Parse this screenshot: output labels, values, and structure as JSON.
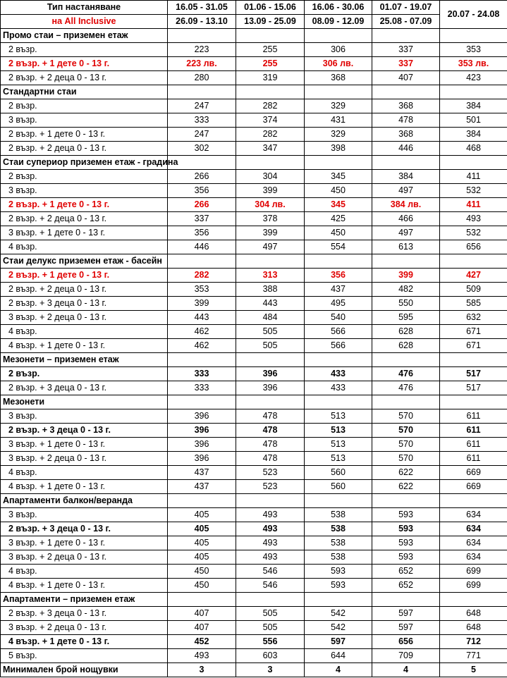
{
  "header": {
    "title": "Тип настаняване",
    "subtitle": "на All Inclusive",
    "periods": [
      [
        "16.05 - 31.05",
        "26.09 - 13.10"
      ],
      [
        "01.06 - 15.06",
        "13.09 - 25.09"
      ],
      [
        "16.06 - 30.06",
        "08.09 - 12.09"
      ],
      [
        "01.07 - 19.07",
        "25.08 - 07.09"
      ],
      [
        "20.07 - 24.08"
      ]
    ]
  },
  "table": {
    "rows": [
      {
        "label": "Промо стаи – приземен етаж",
        "style": "section"
      },
      {
        "label": "2 възр.",
        "values": [
          223,
          255,
          306,
          337,
          353
        ]
      },
      {
        "label": "2 възр. + 1 дете 0 - 13 г.",
        "style": "red",
        "values": [
          "223 лв.",
          255,
          "306 лв.",
          337,
          "353 лв."
        ]
      },
      {
        "label": "2 възр. + 2 деца 0 - 13 г.",
        "values": [
          280,
          319,
          368,
          407,
          423
        ]
      },
      {
        "label": "Стандартни стаи",
        "style": "section"
      },
      {
        "label": "2 възр.",
        "values": [
          247,
          282,
          329,
          368,
          384
        ]
      },
      {
        "label": "3 възр.",
        "values": [
          333,
          374,
          431,
          478,
          501
        ]
      },
      {
        "label": "2 възр. + 1 дете 0 - 13 г.",
        "values": [
          247,
          282,
          329,
          368,
          384
        ]
      },
      {
        "label": "2 възр. + 2 деца 0 - 13 г.",
        "values": [
          302,
          347,
          398,
          446,
          468
        ]
      },
      {
        "label": "Стаи супериор приземен етаж  -  градина",
        "style": "section"
      },
      {
        "label": "2 възр.",
        "values": [
          266,
          304,
          345,
          384,
          411
        ]
      },
      {
        "label": "3 възр.",
        "values": [
          356,
          399,
          450,
          497,
          532
        ]
      },
      {
        "label": "2 възр. + 1 дете 0 - 13 г.",
        "style": "red",
        "values": [
          266,
          "304 лв.",
          345,
          "384 лв.",
          411
        ]
      },
      {
        "label": "2 възр. + 2 деца 0 - 13 г.",
        "values": [
          337,
          378,
          425,
          466,
          493
        ]
      },
      {
        "label": "3 възр. + 1 дете 0 - 13 г.",
        "values": [
          356,
          399,
          450,
          497,
          532
        ]
      },
      {
        "label": "4 възр.",
        "values": [
          446,
          497,
          554,
          613,
          656
        ]
      },
      {
        "label": "Стаи делукс приземен етаж  -  басейн",
        "style": "section"
      },
      {
        "label": "2 възр. + 1 дете 0 - 13 г.",
        "style": "red",
        "values": [
          282,
          313,
          356,
          399,
          427
        ]
      },
      {
        "label": "2 възр. + 2 деца 0 - 13 г.",
        "values": [
          353,
          388,
          437,
          482,
          509
        ]
      },
      {
        "label": "2 възр. + 3 деца 0 - 13 г.",
        "values": [
          399,
          443,
          495,
          550,
          585
        ]
      },
      {
        "label": "3 възр. + 2 деца 0 - 13 г.",
        "values": [
          443,
          484,
          540,
          595,
          632
        ]
      },
      {
        "label": "4 възр.",
        "values": [
          462,
          505,
          566,
          628,
          671
        ]
      },
      {
        "label": "4 възр. + 1 дете 0 - 13 г.",
        "values": [
          462,
          505,
          566,
          628,
          671
        ]
      },
      {
        "label": "Мезонети – приземен етаж",
        "style": "section"
      },
      {
        "label": "2 възр.",
        "style": "bold",
        "values": [
          333,
          396,
          433,
          476,
          517
        ]
      },
      {
        "label": "2 възр. + 3 деца 0 - 13 г.",
        "values": [
          333,
          396,
          433,
          476,
          517
        ]
      },
      {
        "label": "Мезонети",
        "style": "section"
      },
      {
        "label": "3 възр.",
        "values": [
          396,
          478,
          513,
          570,
          611
        ]
      },
      {
        "label": "2 възр. + 3 деца 0 - 13 г.",
        "style": "bold",
        "values": [
          396,
          478,
          513,
          570,
          611
        ]
      },
      {
        "label": "3 възр. + 1 дете 0 - 13 г.",
        "values": [
          396,
          478,
          513,
          570,
          611
        ]
      },
      {
        "label": "3 възр. + 2 деца 0 - 13 г.",
        "values": [
          396,
          478,
          513,
          570,
          611
        ]
      },
      {
        "label": "4 възр.",
        "values": [
          437,
          523,
          560,
          622,
          669
        ]
      },
      {
        "label": "4 възр. + 1  дете 0 - 13 г.",
        "values": [
          437,
          523,
          560,
          622,
          669
        ]
      },
      {
        "label": "Апартаменти балкон/веранда",
        "style": "section"
      },
      {
        "label": "3 възр.",
        "values": [
          405,
          493,
          538,
          593,
          634
        ]
      },
      {
        "label": "2 възр. + 3 деца 0 - 13 г.",
        "style": "bold",
        "values": [
          405,
          493,
          538,
          593,
          634
        ]
      },
      {
        "label": "3 възр. + 1 дете 0 - 13 г.",
        "values": [
          405,
          493,
          538,
          593,
          634
        ]
      },
      {
        "label": "3 възр. + 2 деца 0 - 13 г.",
        "values": [
          405,
          493,
          538,
          593,
          634
        ]
      },
      {
        "label": "4 възр.",
        "values": [
          450,
          546,
          593,
          652,
          699
        ]
      },
      {
        "label": "4 възр. + 1 дете 0 - 13 г.",
        "values": [
          450,
          546,
          593,
          652,
          699
        ]
      },
      {
        "label": "Апартаменти – приземен етаж",
        "style": "section"
      },
      {
        "label": "2 възр. + 3 деца 0 - 13 г.",
        "values": [
          407,
          505,
          542,
          597,
          648
        ]
      },
      {
        "label": "3 възр. + 2 деца 0 - 13 г.",
        "values": [
          407,
          505,
          542,
          597,
          648
        ]
      },
      {
        "label": "4 възр. + 1 дете 0 - 13 г.",
        "style": "bold",
        "values": [
          452,
          556,
          597,
          656,
          712
        ]
      },
      {
        "label": "5 възр.",
        "values": [
          493,
          603,
          644,
          709,
          771
        ]
      },
      {
        "label": "Минимален брой нощувки",
        "style": "total",
        "values": [
          3,
          3,
          4,
          4,
          5
        ]
      }
    ]
  }
}
